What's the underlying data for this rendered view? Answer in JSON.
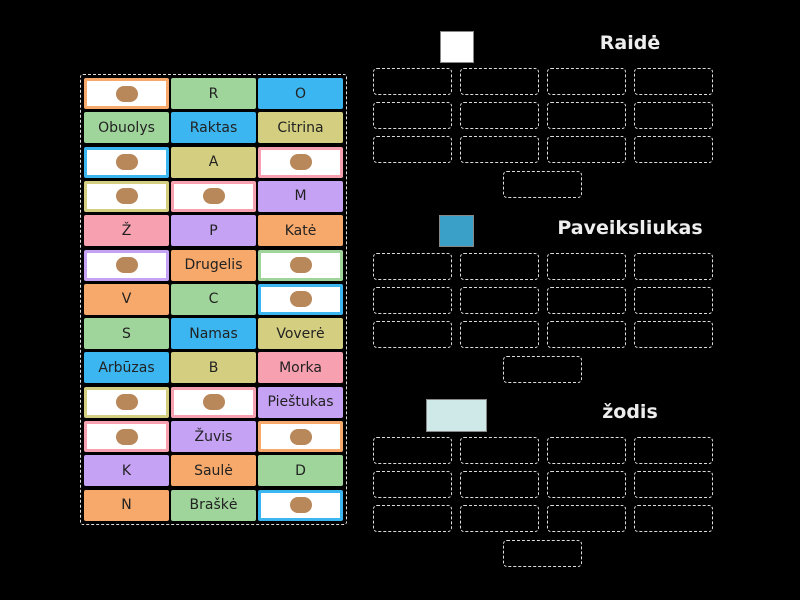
{
  "tiles": [
    [
      {
        "color": "#f7a96b"
      },
      {
        "label": "R",
        "color": "#9fd49b"
      },
      {
        "label": "O",
        "color": "#3bb6f0"
      }
    ],
    [
      {
        "label": "Obuolys",
        "color": "#9fd49b"
      },
      {
        "label": "Raktas",
        "color": "#3bb6f0"
      },
      {
        "label": "Citrina",
        "color": "#d4cf80"
      }
    ],
    [
      {
        "color": "#3bb6f0"
      },
      {
        "label": "A",
        "color": "#d4cf80"
      },
      {
        "color": "#f7a0b0"
      }
    ],
    [
      {
        "color": "#d4cf80"
      },
      {
        "color": "#f7a0b0"
      },
      {
        "label": "M",
        "color": "#c6a2f5"
      }
    ],
    [
      {
        "label": "Ž",
        "color": "#f7a0b0"
      },
      {
        "label": "P",
        "color": "#c6a2f5"
      },
      {
        "label": "Katė",
        "color": "#f7a96b"
      }
    ],
    [
      {
        "color": "#c6a2f5"
      },
      {
        "label": "Drugelis",
        "color": "#f7a96b"
      },
      {
        "color": "#9fd49b"
      }
    ],
    [
      {
        "label": "V",
        "color": "#f7a96b"
      },
      {
        "label": "C",
        "color": "#9fd49b"
      },
      {
        "color": "#3bb6f0"
      }
    ],
    [
      {
        "label": "S",
        "color": "#9fd49b"
      },
      {
        "label": "Namas",
        "color": "#3bb6f0"
      },
      {
        "label": "Voverė",
        "color": "#d4cf80"
      }
    ],
    [
      {
        "label": "Arbūzas",
        "color": "#3bb6f0"
      },
      {
        "label": "B",
        "color": "#d4cf80"
      },
      {
        "label": "Morka",
        "color": "#f7a0b0"
      }
    ],
    [
      {
        "color": "#d4cf80"
      },
      {
        "color": "#f7a0b0"
      },
      {
        "label": "Pieštukas",
        "color": "#c6a2f5"
      }
    ],
    [
      {
        "color": "#f7a0b0"
      },
      {
        "label": "Žuvis",
        "color": "#c6a2f5"
      },
      {
        "color": "#f7a96b"
      }
    ],
    [
      {
        "label": "K",
        "color": "#c6a2f5"
      },
      {
        "label": "Saulė",
        "color": "#f7a96b"
      },
      {
        "label": "D",
        "color": "#9fd49b"
      }
    ],
    [
      {
        "label": "N",
        "color": "#f7a96b"
      },
      {
        "label": "Braškė",
        "color": "#9fd49b"
      },
      {
        "color": "#3bb6f0"
      }
    ]
  ],
  "groups": [
    {
      "title": "Raidė"
    },
    {
      "title": "Paveiksliukas"
    },
    {
      "title": "žodis"
    }
  ]
}
